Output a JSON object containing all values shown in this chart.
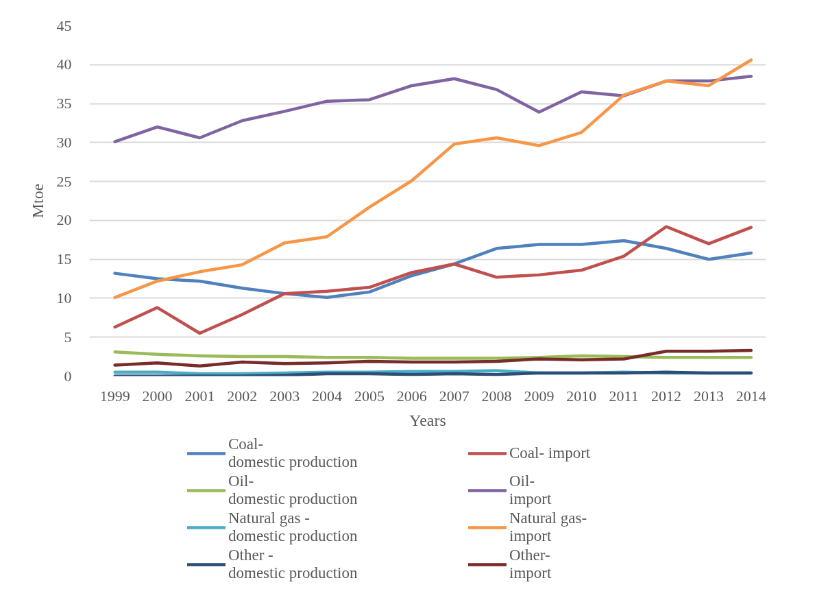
{
  "chart_data": {
    "type": "line",
    "xlabel": "Years",
    "ylabel": "Mtoe",
    "categories": [
      "1999",
      "2000",
      "2001",
      "2002",
      "2003",
      "2004",
      "2005",
      "2006",
      "2007",
      "2008",
      "2009",
      "2010",
      "2011",
      "2012",
      "2013",
      "2014"
    ],
    "ylim": [
      0,
      45
    ],
    "yticks": [
      0,
      5,
      10,
      15,
      20,
      25,
      30,
      35,
      40,
      45
    ],
    "grid": "y",
    "legend": "bottom",
    "line_style": "solid",
    "series": [
      {
        "name": "Coal-\ndomestic production",
        "color": "#4f81bd",
        "values": [
          13.2,
          12.5,
          12.2,
          11.3,
          10.6,
          10.1,
          10.8,
          12.9,
          14.4,
          16.4,
          16.9,
          16.9,
          17.4,
          16.4,
          15.0,
          15.8
        ]
      },
      {
        "name": "Coal- import",
        "color": "#c0504d",
        "values": [
          6.3,
          8.8,
          5.5,
          7.9,
          10.6,
          10.9,
          11.4,
          13.3,
          14.4,
          12.7,
          13.0,
          13.6,
          15.4,
          19.2,
          17.0,
          19.1
        ]
      },
      {
        "name": "Oil-\ndomestic production",
        "color": "#9bbb59",
        "values": [
          3.1,
          2.8,
          2.6,
          2.5,
          2.5,
          2.4,
          2.4,
          2.3,
          2.3,
          2.3,
          2.4,
          2.6,
          2.5,
          2.4,
          2.4,
          2.4
        ]
      },
      {
        "name": "Oil-\nimport",
        "color": "#8064a2",
        "values": [
          30.1,
          32.0,
          30.6,
          32.8,
          34.0,
          35.3,
          35.5,
          37.3,
          38.2,
          36.8,
          33.9,
          36.5,
          36.0,
          37.9,
          37.9,
          38.5
        ]
      },
      {
        "name": "Natural gas -\ndomestic production",
        "color": "#4bacc6",
        "values": [
          0.5,
          0.5,
          0.3,
          0.3,
          0.4,
          0.5,
          0.5,
          0.6,
          0.6,
          0.7,
          0.4,
          0.4,
          0.5,
          0.4,
          0.4,
          0.4
        ]
      },
      {
        "name": "Natural gas-\nimport",
        "color": "#f79646",
        "values": [
          10.1,
          12.2,
          13.4,
          14.3,
          17.1,
          17.9,
          21.7,
          25.1,
          29.8,
          30.6,
          29.6,
          31.3,
          36.1,
          37.9,
          37.3,
          40.6
        ]
      },
      {
        "name": "Other -\ndomestic production",
        "color": "#2c4d75",
        "values": [
          0.0,
          0.0,
          0.0,
          0.0,
          0.1,
          0.3,
          0.3,
          0.2,
          0.3,
          0.2,
          0.4,
          0.4,
          0.4,
          0.5,
          0.4,
          0.4
        ]
      },
      {
        "name": "Other-\nimport",
        "color": "#772c2a",
        "values": [
          1.4,
          1.7,
          1.3,
          1.8,
          1.6,
          1.7,
          1.9,
          1.8,
          1.8,
          1.9,
          2.2,
          2.1,
          2.2,
          3.2,
          3.2,
          3.3
        ]
      }
    ]
  }
}
